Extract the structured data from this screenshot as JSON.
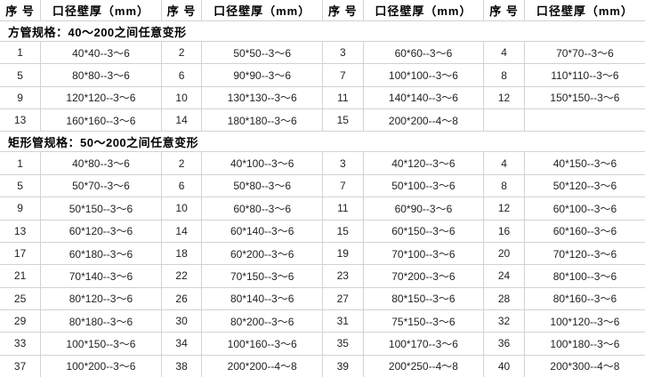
{
  "colors": {
    "background": "#ffffff",
    "border": "#d2d2d2",
    "text": "#222222",
    "heading_text": "#000000"
  },
  "table": {
    "header": {
      "serial_label": "序 号",
      "spec_label": "口径壁厚（mm）"
    },
    "sections": [
      {
        "title": "方管规格：40～200之间任意变形",
        "rows": [
          [
            "1",
            "40*40--3～6",
            "2",
            "50*50--3～6",
            "3",
            "60*60--3～6",
            "4",
            "70*70--3～6"
          ],
          [
            "5",
            "80*80--3～6",
            "6",
            "90*90--3～6",
            "7",
            "100*100--3～6",
            "8",
            "110*110--3～6"
          ],
          [
            "9",
            "120*120--3～6",
            "10",
            "130*130--3～6",
            "11",
            "140*140--3～6",
            "12",
            "150*150--3～6"
          ],
          [
            "13",
            "160*160--3～6",
            "14",
            "180*180--3～6",
            "15",
            "200*200--4～8",
            "",
            ""
          ]
        ]
      },
      {
        "title": "矩形管规格：50～200之间任意变形",
        "rows": [
          [
            "1",
            "40*80--3～6",
            "2",
            "40*100--3～6",
            "3",
            "40*120--3～6",
            "4",
            "40*150--3～6"
          ],
          [
            "5",
            "50*70--3～6",
            "6",
            "50*80--3～6",
            "7",
            "50*100--3～6",
            "8",
            "50*120--3～6"
          ],
          [
            "9",
            "50*150--3～6",
            "10",
            "60*80--3～6",
            "11",
            "60*90--3～6",
            "12",
            "60*100--3～6"
          ],
          [
            "13",
            "60*120--3～6",
            "14",
            "60*140--3～6",
            "15",
            "60*150--3～6",
            "16",
            "60*160--3～6"
          ],
          [
            "17",
            "60*180--3～6",
            "18",
            "60*200--3～6",
            "19",
            "70*100--3～6",
            "20",
            "70*120--3～6"
          ],
          [
            "21",
            "70*140--3～6",
            "22",
            "70*150--3～6",
            "23",
            "70*200--3～6",
            "24",
            "80*100--3～6"
          ],
          [
            "25",
            "80*120--3～6",
            "26",
            "80*140--3～6",
            "27",
            "80*150--3～6",
            "28",
            "80*160--3～6"
          ],
          [
            "29",
            "80*180--3～6",
            "30",
            "80*200--3～6",
            "31",
            "75*150--3～6",
            "32",
            "100*120--3～6"
          ],
          [
            "33",
            "100*150--3～6",
            "34",
            "100*160--3～6",
            "35",
            "100*170--3～6",
            "36",
            "100*180--3～6"
          ],
          [
            "37",
            "100*200--3～6",
            "38",
            "200*200--4～8",
            "39",
            "200*250--4～8",
            "40",
            "200*300--4～8"
          ]
        ]
      }
    ]
  }
}
